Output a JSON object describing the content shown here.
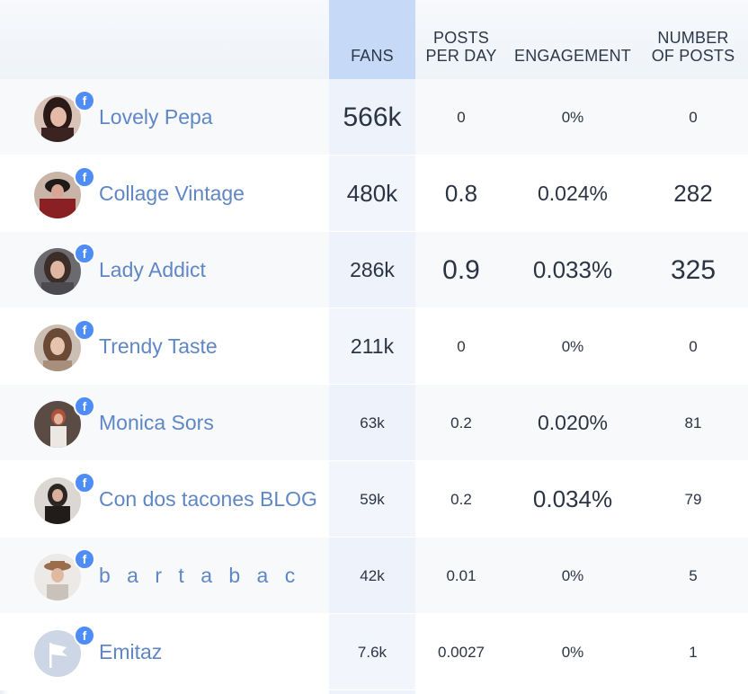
{
  "table": {
    "headers": {
      "fans": "FANS",
      "posts_per_day_line1": "POSTS",
      "posts_per_day_line2": "PER DAY",
      "engagement": "ENGAGEMENT",
      "number_of_posts_line1": "NUMBER",
      "number_of_posts_line2": "OF POSTS"
    },
    "badge_icon_text": "f",
    "rows": [
      {
        "name": "Lovely Pepa",
        "fans": "566k",
        "posts_per_day": "0",
        "engagement": "0%",
        "number_of_posts": "0"
      },
      {
        "name": "Collage Vintage",
        "fans": "480k",
        "posts_per_day": "0.8",
        "engagement": "0.024%",
        "number_of_posts": "282"
      },
      {
        "name": "Lady Addict",
        "fans": "286k",
        "posts_per_day": "0.9",
        "engagement": "0.033%",
        "number_of_posts": "325"
      },
      {
        "name": "Trendy Taste",
        "fans": "211k",
        "posts_per_day": "0",
        "engagement": "0%",
        "number_of_posts": "0"
      },
      {
        "name": "Monica Sors",
        "fans": "63k",
        "posts_per_day": "0.2",
        "engagement": "0.020%",
        "number_of_posts": "81"
      },
      {
        "name": "Con dos tacones BLOG",
        "fans": "59k",
        "posts_per_day": "0.2",
        "engagement": "0.034%",
        "number_of_posts": "79"
      },
      {
        "name": "b a r t a b a c",
        "fans": "42k",
        "posts_per_day": "0.01",
        "engagement": "0%",
        "number_of_posts": "5"
      },
      {
        "name": "Emitaz",
        "fans": "7.6k",
        "posts_per_day": "0.0027",
        "engagement": "0%",
        "number_of_posts": "1"
      }
    ]
  },
  "colors": {
    "accent_blue": "#4d8df5",
    "name_link": "#5f86c5",
    "fans_header": "#c6daf8"
  }
}
